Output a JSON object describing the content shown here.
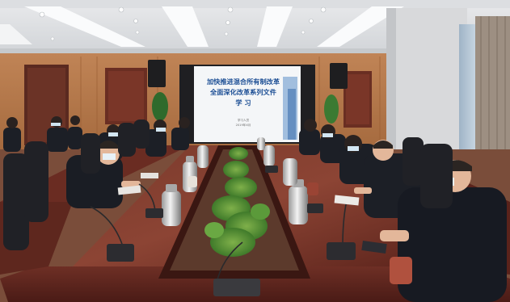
{
  "photo": {
    "slide": {
      "line1": "加快推进混合所有制改革",
      "line2": "全面深化改革系列文件",
      "line3": "学 习",
      "footer1": "学习人员",
      "footer2": "2019年X月"
    }
  }
}
